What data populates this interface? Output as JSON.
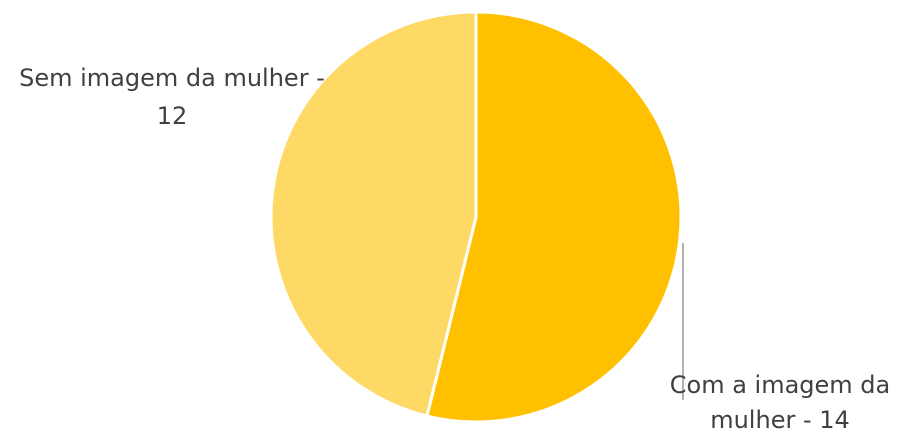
{
  "chart_data": {
    "type": "pie",
    "title": "",
    "slices": [
      {
        "label_line1": "Com a imagem da",
        "label_line2": "mulher - 14",
        "category": "Com a imagem da mulher",
        "value": 14,
        "color": "#FFC000"
      },
      {
        "label_line1": "Sem imagem da mulher -",
        "label_line2": "12",
        "category": "Sem imagem da mulher",
        "value": 12,
        "color": "#FFD966"
      }
    ],
    "legend": "none",
    "slice_border_color": "#ffffff",
    "leader_line_color": "#7f7f7f"
  }
}
